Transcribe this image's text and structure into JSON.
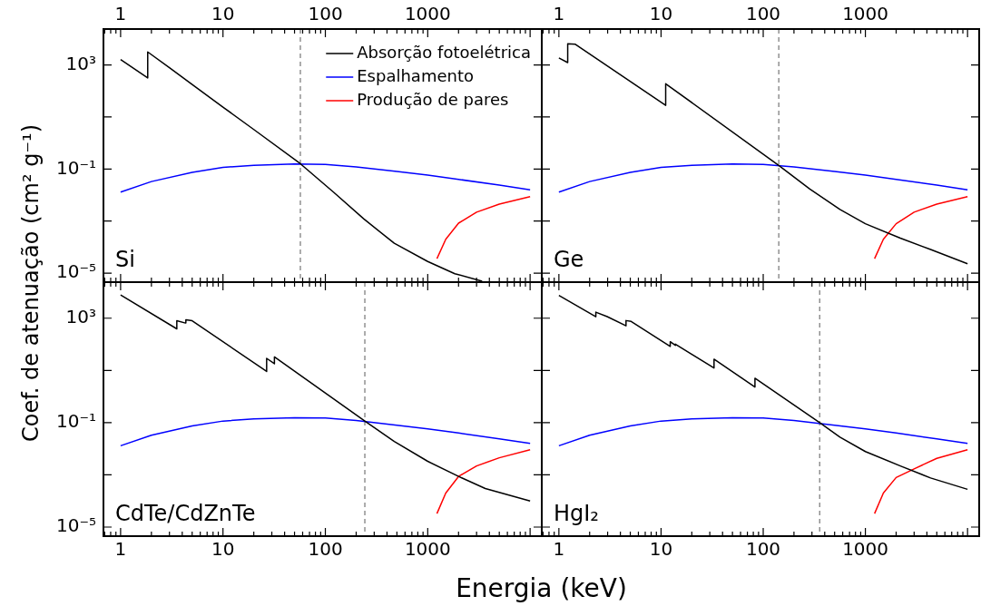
{
  "chart_data": [
    {
      "type": "line",
      "title": "Si",
      "ylabel": "Coef. de atenuação (cm² g⁻¹)",
      "log": "xy",
      "marker": "none",
      "legend": "top right",
      "xlim": [
        0.68,
        13000
      ],
      "ylim": [
        4.5e-06,
        24000
      ],
      "xticks": [
        {
          "value": 0.7,
          "label": null
        },
        {
          "value": 0.8,
          "label": null
        },
        {
          "value": 0.9,
          "label": null
        },
        1,
        {
          "value": 2,
          "label": null
        },
        {
          "value": 3,
          "label": null
        },
        {
          "value": 4,
          "label": null
        },
        {
          "value": 5,
          "label": null
        },
        {
          "value": 6,
          "label": null
        },
        {
          "value": 7,
          "label": null
        },
        {
          "value": 8,
          "label": null
        },
        {
          "value": 9,
          "label": null
        },
        10,
        {
          "value": 20,
          "label": null
        },
        {
          "value": 30,
          "label": null
        },
        {
          "value": 40,
          "label": null
        },
        {
          "value": 50,
          "label": null
        },
        {
          "value": 60,
          "label": null
        },
        {
          "value": 70,
          "label": null
        },
        {
          "value": 80,
          "label": null
        },
        {
          "value": 90,
          "label": null
        },
        100,
        {
          "value": 200,
          "label": null
        },
        {
          "value": 300,
          "label": null
        },
        {
          "value": 400,
          "label": null
        },
        {
          "value": 500,
          "label": null
        },
        {
          "value": 600,
          "label": null
        },
        {
          "value": 700,
          "label": null
        },
        {
          "value": 800,
          "label": null
        },
        {
          "value": 900,
          "label": null
        },
        1000,
        {
          "value": 2000,
          "label": null
        },
        {
          "value": 3000,
          "label": null
        },
        {
          "value": 4000,
          "label": null
        },
        {
          "value": 5000,
          "label": null
        },
        {
          "value": 6000,
          "label": null
        },
        {
          "value": 7000,
          "label": null
        },
        {
          "value": 8000,
          "label": null
        },
        {
          "value": 9000,
          "label": null
        },
        {
          "value": 10000,
          "label": null
        }
      ],
      "yticks": [
        {
          "value": 1000,
          "label": "10³"
        },
        {
          "value": 10,
          "label": null
        },
        {
          "value": 0.1,
          "label": "10⁻¹"
        },
        {
          "value": 0.001,
          "label": null
        },
        {
          "value": 1e-05,
          "label": "10⁻⁵"
        }
      ],
      "ref_lines": [
        {
          "axis": "x",
          "value": 57,
          "color": "#808080",
          "line_style": "dashed"
        }
      ],
      "series": [
        {
          "name": "Absorção fotoelétrica",
          "color": "#000000",
          "x": [
            1,
            1.84,
            1.84,
            3,
            5,
            10,
            20,
            57,
            120,
            238,
            471,
            1000,
            1841,
            3400
          ],
          "values": [
            1600,
            316,
            3160,
            780,
            178,
            24,
            3.3,
            0.16,
            0.013,
            0.0012,
            0.00014,
            2.8e-05,
            9.5e-06,
            4.9e-06
          ]
        },
        {
          "name": "Espalhamento",
          "color": "#0000ff",
          "x": [
            1,
            2,
            5,
            10,
            20,
            50,
            100,
            200,
            500,
            1000,
            2000,
            5000,
            10000
          ],
          "values": [
            0.013,
            0.033,
            0.075,
            0.115,
            0.14,
            0.155,
            0.15,
            0.12,
            0.08,
            0.058,
            0.04,
            0.024,
            0.016
          ]
        },
        {
          "name": "Produção de pares",
          "color": "#ff0000",
          "x": [
            1230,
            1500,
            2000,
            3000,
            5000,
            10000
          ],
          "values": [
            3.6e-05,
            0.0002,
            0.00083,
            0.0022,
            0.0045,
            0.0087
          ]
        }
      ]
    },
    {
      "type": "line",
      "title": "Ge",
      "log": "xy",
      "marker": "none",
      "tick_labels": "x",
      "xlim": [
        0.68,
        13000
      ],
      "ylim": [
        4.5e-06,
        24000
      ],
      "xticks": [
        {
          "value": 0.7,
          "label": null
        },
        {
          "value": 0.8,
          "label": null
        },
        {
          "value": 0.9,
          "label": null
        },
        1,
        {
          "value": 2,
          "label": null
        },
        {
          "value": 3,
          "label": null
        },
        {
          "value": 4,
          "label": null
        },
        {
          "value": 5,
          "label": null
        },
        {
          "value": 6,
          "label": null
        },
        {
          "value": 7,
          "label": null
        },
        {
          "value": 8,
          "label": null
        },
        {
          "value": 9,
          "label": null
        },
        10,
        {
          "value": 20,
          "label": null
        },
        {
          "value": 30,
          "label": null
        },
        {
          "value": 40,
          "label": null
        },
        {
          "value": 50,
          "label": null
        },
        {
          "value": 60,
          "label": null
        },
        {
          "value": 70,
          "label": null
        },
        {
          "value": 80,
          "label": null
        },
        {
          "value": 90,
          "label": null
        },
        100,
        {
          "value": 200,
          "label": null
        },
        {
          "value": 300,
          "label": null
        },
        {
          "value": 400,
          "label": null
        },
        {
          "value": 500,
          "label": null
        },
        {
          "value": 600,
          "label": null
        },
        {
          "value": 700,
          "label": null
        },
        {
          "value": 800,
          "label": null
        },
        {
          "value": 900,
          "label": null
        },
        1000,
        {
          "value": 2000,
          "label": null
        },
        {
          "value": 3000,
          "label": null
        },
        {
          "value": 4000,
          "label": null
        },
        {
          "value": 5000,
          "label": null
        },
        {
          "value": 6000,
          "label": null
        },
        {
          "value": 7000,
          "label": null
        },
        {
          "value": 8000,
          "label": null
        },
        {
          "value": 9000,
          "label": null
        },
        {
          "value": 10000,
          "label": null
        }
      ],
      "yticks": [
        {
          "value": 1000,
          "label": null
        },
        {
          "value": 10,
          "label": null
        },
        {
          "value": 0.1,
          "label": null
        },
        {
          "value": 0.001,
          "label": null
        },
        {
          "value": 1e-05,
          "label": null
        }
      ],
      "ref_lines": [
        {
          "axis": "x",
          "value": 142,
          "color": "#808080",
          "line_style": "dashed"
        }
      ],
      "series": [
        {
          "color": "#000000",
          "x": [
            1,
            1.22,
            1.22,
            1.45,
            11.1,
            11.1,
            142,
            286,
            564,
            1000,
            2200,
            4350,
            10000
          ],
          "values": [
            1850,
            1230,
            6500,
            6200,
            28,
            190,
            0.138,
            0.017,
            0.0028,
            0.00079,
            0.00022,
            8.1e-05,
            2.3e-05
          ]
        },
        {
          "color": "#0000ff",
          "x": [
            1,
            2,
            5,
            10,
            20,
            50,
            100,
            200,
            500,
            1000,
            2000,
            5000,
            10000
          ],
          "values": [
            0.013,
            0.033,
            0.075,
            0.115,
            0.14,
            0.155,
            0.15,
            0.12,
            0.08,
            0.058,
            0.04,
            0.024,
            0.016
          ]
        },
        {
          "color": "#ff0000",
          "x": [
            1230,
            1500,
            2000,
            3000,
            5000,
            10000
          ],
          "values": [
            3.6e-05,
            0.0002,
            0.00079,
            0.0022,
            0.0045,
            0.0087
          ]
        }
      ]
    },
    {
      "type": "line",
      "title": "CdTe/CdZnTe",
      "xlabel": "Energia (keV)",
      "log": "xy",
      "marker": "none",
      "xlim": [
        0.68,
        13000
      ],
      "ylim": [
        4.5e-06,
        24000
      ],
      "xticks": [
        {
          "value": 0.7,
          "label": null
        },
        {
          "value": 0.8,
          "label": null
        },
        {
          "value": 0.9,
          "label": null
        },
        1,
        {
          "value": 2,
          "label": null
        },
        {
          "value": 3,
          "label": null
        },
        {
          "value": 4,
          "label": null
        },
        {
          "value": 5,
          "label": null
        },
        {
          "value": 6,
          "label": null
        },
        {
          "value": 7,
          "label": null
        },
        {
          "value": 8,
          "label": null
        },
        {
          "value": 9,
          "label": null
        },
        10,
        {
          "value": 20,
          "label": null
        },
        {
          "value": 30,
          "label": null
        },
        {
          "value": 40,
          "label": null
        },
        {
          "value": 50,
          "label": null
        },
        {
          "value": 60,
          "label": null
        },
        {
          "value": 70,
          "label": null
        },
        {
          "value": 80,
          "label": null
        },
        {
          "value": 90,
          "label": null
        },
        100,
        {
          "value": 200,
          "label": null
        },
        {
          "value": 300,
          "label": null
        },
        {
          "value": 400,
          "label": null
        },
        {
          "value": 500,
          "label": null
        },
        {
          "value": 600,
          "label": null
        },
        {
          "value": 700,
          "label": null
        },
        {
          "value": 800,
          "label": null
        },
        {
          "value": 900,
          "label": null
        },
        1000,
        {
          "value": 2000,
          "label": null
        },
        {
          "value": 3000,
          "label": null
        },
        {
          "value": 4000,
          "label": null
        },
        {
          "value": 5000,
          "label": null
        },
        {
          "value": 6000,
          "label": null
        },
        {
          "value": 7000,
          "label": null
        },
        {
          "value": 8000,
          "label": null
        },
        {
          "value": 9000,
          "label": null
        },
        {
          "value": 10000,
          "label": null
        }
      ],
      "yticks": [
        {
          "value": 1000,
          "label": "10³"
        },
        {
          "value": 10,
          "label": null
        },
        {
          "value": 0.1,
          "label": "10⁻¹"
        },
        {
          "value": 0.001,
          "label": null
        },
        {
          "value": 1e-05,
          "label": "10⁻⁵"
        }
      ],
      "ref_lines": [
        {
          "axis": "x",
          "value": 243,
          "color": "#808080",
          "line_style": "dashed"
        }
      ],
      "series": [
        {
          "color": "#000000",
          "x": [
            1,
            3.54,
            3.54,
            4.3,
            4.34,
            5,
            26.7,
            26.7,
            31.8,
            31.8,
            243,
            471,
            1000,
            2000,
            3650,
            10000
          ],
          "values": [
            7800,
            390,
            800,
            650,
            860,
            800,
            9.1,
            29,
            18,
            33,
            0.115,
            0.019,
            0.0033,
            0.00087,
            0.0003,
            0.0001
          ]
        },
        {
          "color": "#0000ff",
          "x": [
            1,
            2,
            5,
            10,
            20,
            50,
            100,
            200,
            500,
            1000,
            2000,
            5000,
            10000
          ],
          "values": [
            0.013,
            0.033,
            0.075,
            0.115,
            0.14,
            0.155,
            0.15,
            0.12,
            0.08,
            0.058,
            0.04,
            0.024,
            0.016
          ]
        },
        {
          "color": "#ff0000",
          "x": [
            1230,
            1500,
            2000,
            3000,
            5000,
            10000
          ],
          "values": [
            3.3e-05,
            0.0002,
            0.00087,
            0.0022,
            0.0045,
            0.0091
          ]
        }
      ]
    },
    {
      "type": "line",
      "title": "HgI₂",
      "log": "xy",
      "marker": "none",
      "tick_labels": "x",
      "xlim": [
        0.68,
        13000
      ],
      "ylim": [
        4.5e-06,
        24000
      ],
      "xticks": [
        {
          "value": 0.7,
          "label": null
        },
        {
          "value": 0.8,
          "label": null
        },
        {
          "value": 0.9,
          "label": null
        },
        1,
        {
          "value": 2,
          "label": null
        },
        {
          "value": 3,
          "label": null
        },
        {
          "value": 4,
          "label": null
        },
        {
          "value": 5,
          "label": null
        },
        {
          "value": 6,
          "label": null
        },
        {
          "value": 7,
          "label": null
        },
        {
          "value": 8,
          "label": null
        },
        {
          "value": 9,
          "label": null
        },
        10,
        {
          "value": 20,
          "label": null
        },
        {
          "value": 30,
          "label": null
        },
        {
          "value": 40,
          "label": null
        },
        {
          "value": 50,
          "label": null
        },
        {
          "value": 60,
          "label": null
        },
        {
          "value": 70,
          "label": null
        },
        {
          "value": 80,
          "label": null
        },
        {
          "value": 90,
          "label": null
        },
        100,
        {
          "value": 200,
          "label": null
        },
        {
          "value": 300,
          "label": null
        },
        {
          "value": 400,
          "label": null
        },
        {
          "value": 500,
          "label": null
        },
        {
          "value": 600,
          "label": null
        },
        {
          "value": 700,
          "label": null
        },
        {
          "value": 800,
          "label": null
        },
        {
          "value": 900,
          "label": null
        },
        1000,
        {
          "value": 2000,
          "label": null
        },
        {
          "value": 3000,
          "label": null
        },
        {
          "value": 4000,
          "label": null
        },
        {
          "value": 5000,
          "label": null
        },
        {
          "value": 6000,
          "label": null
        },
        {
          "value": 7000,
          "label": null
        },
        {
          "value": 8000,
          "label": null
        },
        {
          "value": 9000,
          "label": null
        },
        {
          "value": 10000,
          "label": null
        }
      ],
      "yticks": [
        {
          "value": 1000,
          "label": null
        },
        {
          "value": 10,
          "label": null
        },
        {
          "value": 0.1,
          "label": null
        },
        {
          "value": 0.001,
          "label": null
        },
        {
          "value": 1e-05,
          "label": null
        }
      ],
      "ref_lines": [
        {
          "axis": "x",
          "value": 357,
          "color": "#808080",
          "line_style": "dashed"
        }
      ],
      "series": [
        {
          "color": "#000000",
          "x": [
            1,
            2.3,
            2.3,
            2.97,
            4.54,
            4.54,
            5.1,
            12.3,
            12.3,
            13.8,
            13.8,
            33,
            33,
            83,
            83,
            357,
            564,
            1000,
            2200,
            4350,
            10000
          ],
          "values": [
            7400,
            1140,
            1700,
            1150,
            510,
            810,
            750,
            83,
            125,
            91,
            102,
            12.3,
            27,
            2.3,
            5,
            0.1,
            0.028,
            0.0078,
            0.0022,
            0.00076,
            0.00028
          ]
        },
        {
          "color": "#0000ff",
          "x": [
            1,
            2,
            5,
            10,
            20,
            50,
            100,
            200,
            500,
            1000,
            2000,
            5000,
            10000
          ],
          "values": [
            0.013,
            0.033,
            0.075,
            0.115,
            0.14,
            0.155,
            0.15,
            0.12,
            0.08,
            0.058,
            0.04,
            0.024,
            0.016
          ]
        },
        {
          "color": "#ff0000",
          "x": [
            1230,
            1500,
            2000,
            3000,
            5000,
            10000
          ],
          "values": [
            3.3e-05,
            0.0002,
            0.00079,
            0.0017,
            0.0043,
            0.0091
          ]
        }
      ]
    }
  ]
}
